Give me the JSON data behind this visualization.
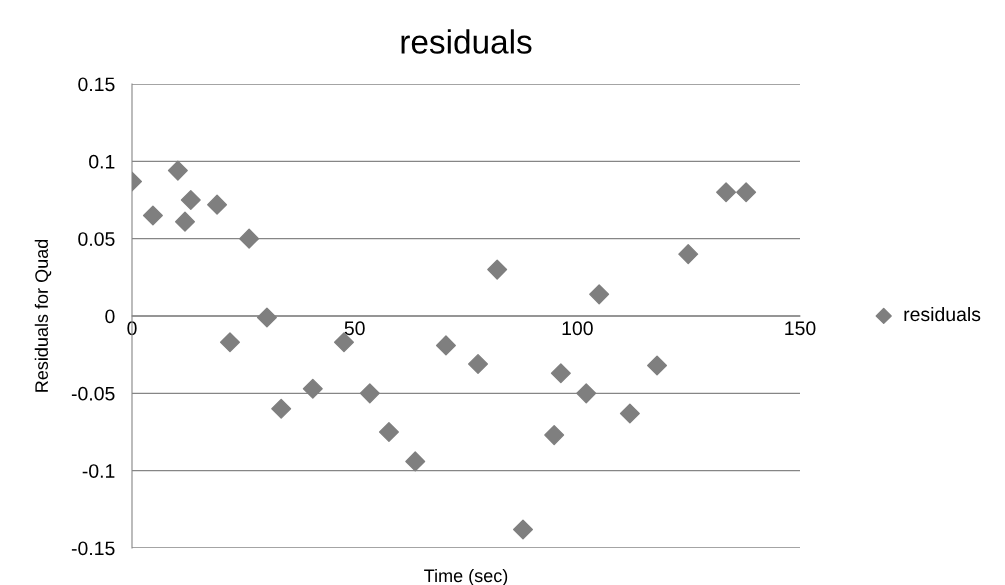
{
  "chart_data": {
    "type": "scatter",
    "title": "residuals",
    "xlabel": "Time (sec)",
    "ylabel": "Residuals for Quad",
    "x": [
      0,
      4.7,
      10.3,
      11.9,
      13.2,
      19.1,
      22,
      26.3,
      30.3,
      33.5,
      40.6,
      47.6,
      53.4,
      57.7,
      63.6,
      70.5,
      77.7,
      82,
      87.8,
      94.8,
      96.3,
      102,
      104.9,
      111.8,
      117.9,
      124.9,
      133.4,
      137.9
    ],
    "series": [
      {
        "name": "residuals",
        "color": "#7f7f7f",
        "values": [
          0.087,
          0.065,
          0.094,
          0.061,
          0.075,
          0.072,
          -0.017,
          0.05,
          -0.001,
          -0.06,
          -0.047,
          -0.017,
          -0.05,
          -0.075,
          -0.094,
          -0.019,
          -0.031,
          0.03,
          -0.138,
          -0.077,
          -0.037,
          -0.05,
          0.014,
          -0.063,
          -0.032,
          0.04,
          0.08,
          0.08
        ]
      }
    ],
    "xlim": [
      0,
      150
    ],
    "xticks": [
      0,
      50,
      100,
      150
    ],
    "ylim": [
      -0.15,
      0.15
    ],
    "yticks": [
      -0.15,
      -0.1,
      -0.05,
      0,
      0.05,
      0.1,
      0.15
    ],
    "grid": "y",
    "legend": "right",
    "marker": "diamond"
  }
}
